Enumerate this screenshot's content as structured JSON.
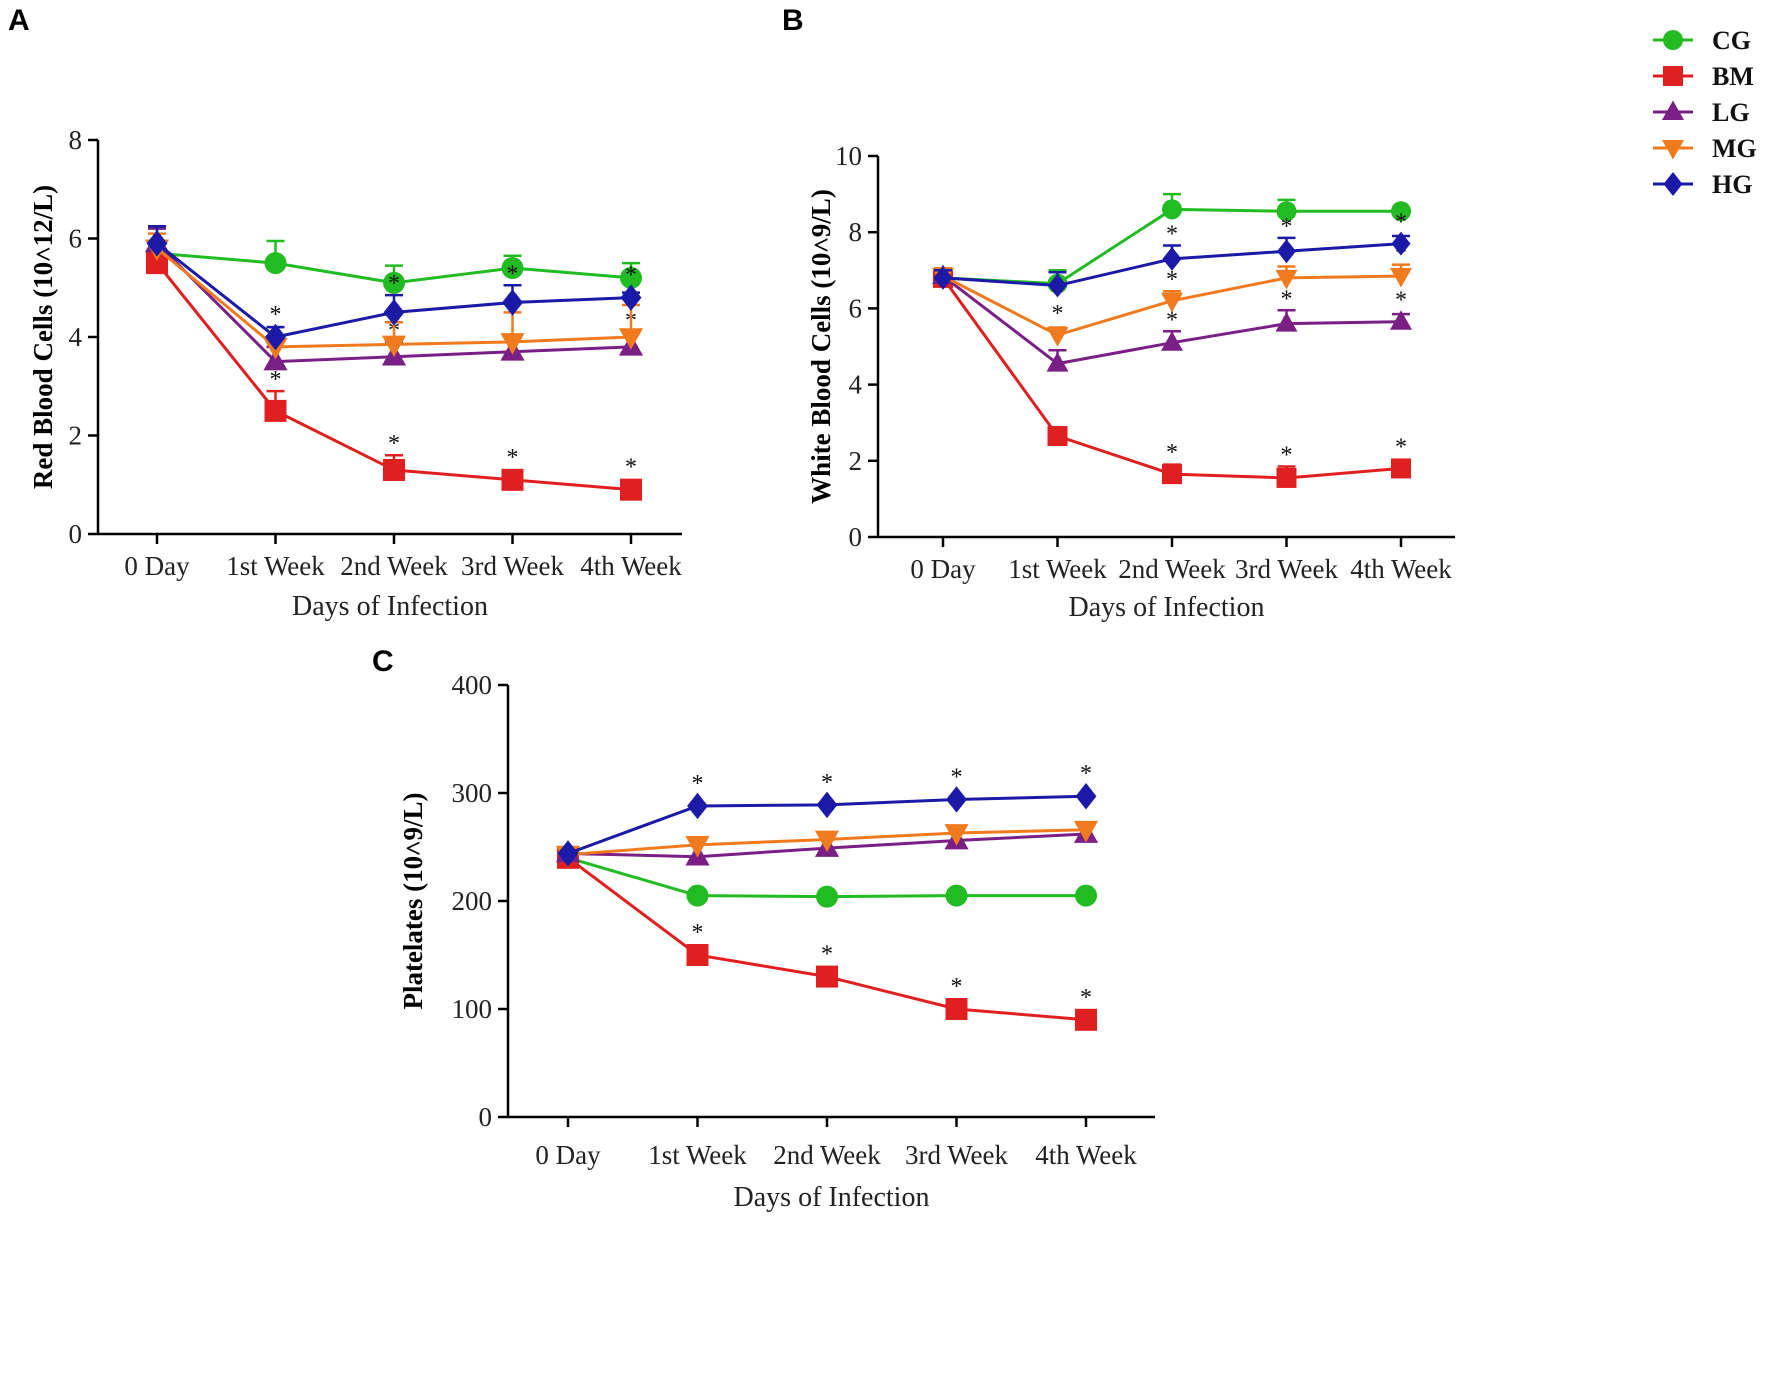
{
  "legend": [
    {
      "key": "CG",
      "label": "CG",
      "color": "#22bb22",
      "marker": "circle"
    },
    {
      "key": "BM",
      "label": "BM",
      "color": "#e02020",
      "marker": "square"
    },
    {
      "key": "LG",
      "label": "LG",
      "color": "#7a1f86",
      "marker": "triangle-up"
    },
    {
      "key": "MG",
      "label": "MG",
      "color": "#f07a1e",
      "marker": "triangle-down"
    },
    {
      "key": "HG",
      "label": "HG",
      "color": "#1a1aa6",
      "marker": "diamond"
    }
  ],
  "chart_data": [
    {
      "panel": "A",
      "type": "line",
      "title": "",
      "xlabel": "Days of Infection",
      "ylabel": "Red Blood Cells (10^12/L)",
      "categories": [
        "0 Day",
        "1st Week",
        "2nd Week",
        "3rd Week",
        "4th Week"
      ],
      "ylim": [
        0,
        8
      ],
      "yticks": [
        0,
        2,
        4,
        6,
        8
      ],
      "series": [
        {
          "key": "CG",
          "values": [
            5.7,
            5.5,
            5.1,
            5.4,
            5.2
          ],
          "errors": [
            0.2,
            0.45,
            0.35,
            0.25,
            0.3
          ],
          "significant": [
            false,
            false,
            false,
            false,
            false
          ]
        },
        {
          "key": "BM",
          "values": [
            5.5,
            2.5,
            1.3,
            1.1,
            0.9
          ],
          "errors": [
            0.2,
            0.4,
            0.3,
            0.15,
            0.15
          ],
          "significant": [
            false,
            true,
            true,
            true,
            true
          ]
        },
        {
          "key": "LG",
          "values": [
            5.9,
            3.5,
            3.6,
            3.7,
            3.8
          ],
          "errors": [
            0.3,
            0.3,
            0.3,
            0.3,
            0.3
          ],
          "significant": [
            false,
            false,
            true,
            false,
            true
          ]
        },
        {
          "key": "MG",
          "values": [
            5.8,
            3.8,
            3.85,
            3.9,
            4.0
          ],
          "errors": [
            0.3,
            0.4,
            0.45,
            0.6,
            0.65
          ],
          "significant": [
            false,
            false,
            false,
            true,
            false
          ]
        },
        {
          "key": "HG",
          "values": [
            5.9,
            4.0,
            4.5,
            4.7,
            4.8
          ],
          "errors": [
            0.35,
            0.2,
            0.35,
            0.35,
            0.1
          ],
          "significant": [
            false,
            true,
            true,
            true,
            true
          ]
        }
      ]
    },
    {
      "panel": "B",
      "type": "line",
      "title": "",
      "xlabel": "Days of Infection",
      "ylabel": "White Blood Cells (10^9/L)",
      "categories": [
        "0 Day",
        "1st Week",
        "2nd Week",
        "3rd Week",
        "4th Week"
      ],
      "ylim": [
        0,
        10
      ],
      "yticks": [
        0,
        2,
        4,
        6,
        8,
        10
      ],
      "series": [
        {
          "key": "CG",
          "values": [
            6.8,
            6.65,
            8.6,
            8.55,
            8.55
          ],
          "errors": [
            0.2,
            0.35,
            0.4,
            0.3,
            0.0
          ],
          "significant": [
            false,
            false,
            false,
            false,
            false
          ]
        },
        {
          "key": "BM",
          "values": [
            6.8,
            2.65,
            1.65,
            1.55,
            1.8
          ],
          "errors": [
            0.2,
            0.1,
            0.25,
            0.3,
            0.15
          ],
          "significant": [
            false,
            false,
            true,
            true,
            true
          ]
        },
        {
          "key": "LG",
          "values": [
            6.85,
            4.55,
            5.1,
            5.6,
            5.65
          ],
          "errors": [
            0.2,
            0.35,
            0.3,
            0.35,
            0.2
          ],
          "significant": [
            false,
            true,
            true,
            true,
            true
          ]
        },
        {
          "key": "MG",
          "values": [
            6.85,
            5.3,
            6.2,
            6.8,
            6.85
          ],
          "errors": [
            0.2,
            0.2,
            0.25,
            0.3,
            0.3
          ],
          "significant": [
            false,
            true,
            true,
            true,
            true
          ]
        },
        {
          "key": "HG",
          "values": [
            6.8,
            6.6,
            7.3,
            7.5,
            7.7
          ],
          "errors": [
            0.2,
            0.35,
            0.35,
            0.35,
            0.2
          ],
          "significant": [
            false,
            false,
            true,
            true,
            true
          ]
        }
      ]
    },
    {
      "panel": "C",
      "type": "line",
      "title": "",
      "xlabel": "Days of Infection",
      "ylabel": "Platelates (10^9/L)",
      "categories": [
        "0 Day",
        "1st Week",
        "2nd Week",
        "3rd Week",
        "4th Week"
      ],
      "ylim": [
        0,
        400
      ],
      "yticks": [
        0,
        100,
        200,
        300,
        400
      ],
      "series": [
        {
          "key": "CG",
          "values": [
            240,
            205,
            204,
            205,
            205
          ],
          "errors": [
            0,
            0,
            0,
            0,
            0
          ],
          "significant": [
            false,
            false,
            false,
            false,
            false
          ]
        },
        {
          "key": "BM",
          "values": [
            240,
            150,
            130,
            100,
            90
          ],
          "errors": [
            0,
            0,
            0,
            0,
            0
          ],
          "significant": [
            false,
            true,
            true,
            true,
            true
          ]
        },
        {
          "key": "LG",
          "values": [
            244,
            241,
            249,
            256,
            262
          ],
          "errors": [
            0,
            0,
            0,
            0,
            0
          ],
          "significant": [
            false,
            false,
            false,
            false,
            false
          ]
        },
        {
          "key": "MG",
          "values": [
            243,
            252,
            257,
            263,
            266
          ],
          "errors": [
            0,
            0,
            0,
            0,
            0
          ],
          "significant": [
            false,
            false,
            false,
            false,
            false
          ]
        },
        {
          "key": "HG",
          "values": [
            244,
            288,
            289,
            294,
            297
          ],
          "errors": [
            0,
            0,
            0,
            0,
            0
          ],
          "significant": [
            false,
            true,
            true,
            true,
            true
          ]
        }
      ]
    }
  ],
  "significance_mark": "*"
}
